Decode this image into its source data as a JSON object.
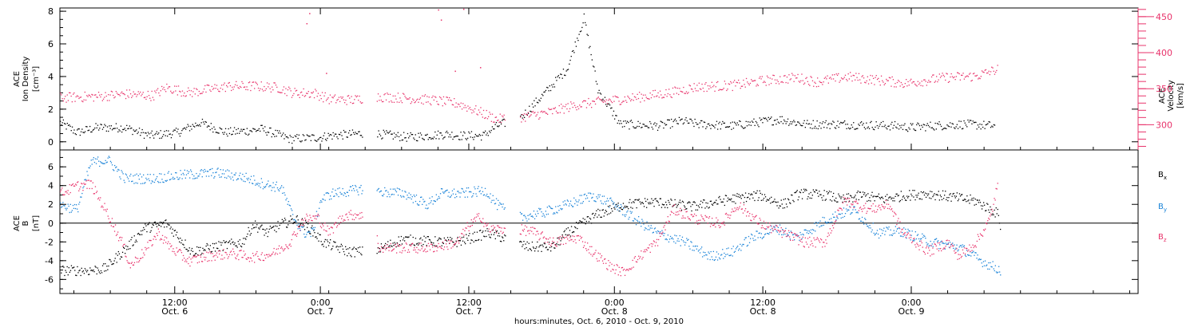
{
  "colors": {
    "black": "#000000",
    "pink": "#e8336b",
    "blue": "#1b84d8",
    "frame": "#000000"
  },
  "chart_data": [
    {
      "type": "scatter",
      "panel": "top",
      "left_axis": {
        "label_lines": [
          "ACE",
          "Ion Density"
        ],
        "unit": "[cm⁻³]",
        "ticks": [
          "8",
          "6",
          "4",
          "2",
          "0"
        ],
        "ylim": [
          -0.5,
          8.2
        ]
      },
      "right_axis": {
        "label_lines": [
          "ACE",
          "Velocity"
        ],
        "unit": "[km/s]",
        "ticks": [
          "450",
          "400",
          "350",
          "300"
        ],
        "ylim": [
          265,
          462
        ]
      },
      "series": [
        {
          "color": "black",
          "axis": "left",
          "points": [
            [
              0,
              1.2
            ],
            [
              0.6,
              0.6
            ],
            [
              1.3,
              0.9
            ],
            [
              2.3,
              0.9
            ],
            [
              3.2,
              0.4
            ],
            [
              4.2,
              0.6
            ],
            [
              5.0,
              1.2
            ],
            [
              5.9,
              0.6
            ],
            [
              6.7,
              0.7
            ],
            [
              7.2,
              0.8
            ],
            [
              8.2,
              0.2
            ],
            [
              9.3,
              0.3
            ],
            [
              9.6,
              0.4
            ],
            [
              10.5,
              0.5
            ],
            [
              11.0,
              0.6
            ],
            [
              11.4,
              0.5
            ],
            [
              12.4,
              0.3
            ],
            [
              13.8,
              0.5
            ],
            [
              14.3,
              0.4
            ],
            [
              15.1,
              0.4
            ],
            [
              15.6,
              1.0
            ],
            [
              16.5,
              1.6
            ],
            [
              17.3,
              3.0
            ],
            [
              18.1,
              4.5
            ],
            [
              18.7,
              7.6
            ],
            [
              19.2,
              3.2
            ],
            [
              20.0,
              1.1
            ],
            [
              21.4,
              1.0
            ],
            [
              22.2,
              1.3
            ],
            [
              22.8,
              1.1
            ],
            [
              24.0,
              1.0
            ],
            [
              25.7,
              1.4
            ],
            [
              26.6,
              1.1
            ],
            [
              27.9,
              1.1
            ],
            [
              29.8,
              1.0
            ],
            [
              30.4,
              0.9
            ],
            [
              31.1,
              1.0
            ],
            [
              32.3,
              1.1
            ],
            [
              33.4,
              1.0
            ]
          ]
        },
        {
          "color": "pink",
          "axis": "right",
          "points": [
            [
              0,
              338
            ],
            [
              1.4,
              340
            ],
            [
              2.3,
              343
            ],
            [
              3.3,
              341
            ],
            [
              3.8,
              352
            ],
            [
              4.6,
              345
            ],
            [
              5.2,
              349
            ],
            [
              6.0,
              354
            ],
            [
              7.0,
              354
            ],
            [
              7.8,
              352
            ],
            [
              8.3,
              345
            ],
            [
              9.1,
              344
            ],
            [
              9.6,
              336
            ],
            [
              10.5,
              335
            ],
            [
              11.1,
              340
            ],
            [
              12.2,
              338
            ],
            [
              13.2,
              335
            ],
            [
              14.2,
              330
            ],
            [
              14.8,
              321
            ],
            [
              15.6,
              308
            ],
            [
              16.6,
              312
            ],
            [
              17.5,
              318
            ],
            [
              18.4,
              328
            ],
            [
              19.6,
              334
            ],
            [
              20.5,
              338
            ],
            [
              21.8,
              345
            ],
            [
              22.7,
              353
            ],
            [
              24.0,
              355
            ],
            [
              25.2,
              362
            ],
            [
              26.3,
              366
            ],
            [
              27.0,
              360
            ],
            [
              28.1,
              367
            ],
            [
              29.1,
              363
            ],
            [
              30.2,
              358
            ],
            [
              31.6,
              366
            ],
            [
              32.7,
              368
            ],
            [
              33.5,
              378
            ]
          ]
        },
        {
          "color": "pink",
          "axis": "right",
          "style": "sparse",
          "points": [
            [
              8.9,
              455
            ],
            [
              8.8,
              441
            ],
            [
              13.5,
              460
            ],
            [
              14.4,
              461
            ],
            [
              13.6,
              446
            ],
            [
              15.0,
              380
            ],
            [
              9.5,
              372
            ],
            [
              14.1,
              375
            ]
          ]
        }
      ]
    },
    {
      "type": "scatter",
      "panel": "bottom",
      "left_axis": {
        "label_lines": [
          "ACE",
          "B"
        ],
        "unit": "[nT]",
        "ticks": [
          "6",
          "4",
          "2",
          "0",
          "-2",
          "-4",
          "-6"
        ],
        "ylim": [
          -7.5,
          7.8
        ]
      },
      "legend": [
        {
          "label": "B",
          "subscript": "x",
          "color": "black"
        },
        {
          "label": "B",
          "subscript": "y",
          "color": "blue"
        },
        {
          "label": "B",
          "subscript": "z",
          "color": "pink"
        }
      ],
      "series": [
        {
          "name": "Bx",
          "color": "black",
          "points": [
            [
              0,
              -5.0
            ],
            [
              1.0,
              -5.0
            ],
            [
              1.6,
              -4.8
            ],
            [
              2.4,
              -2.5
            ],
            [
              3.0,
              -0.5
            ],
            [
              3.8,
              0.0
            ],
            [
              4.7,
              -3.0
            ],
            [
              5.5,
              -2.5
            ],
            [
              6.5,
              -2.0
            ],
            [
              6.9,
              -0.1
            ],
            [
              7.4,
              -1.0
            ],
            [
              7.8,
              -0.2
            ],
            [
              8.4,
              0.5
            ],
            [
              8.9,
              -0.5
            ],
            [
              9.4,
              -2.0
            ],
            [
              10.3,
              -3.0
            ],
            [
              11.0,
              -3.0
            ],
            [
              11.4,
              -2.7
            ],
            [
              12.2,
              -1.7
            ],
            [
              13.2,
              -1.9
            ],
            [
              14.1,
              -2.0
            ],
            [
              14.7,
              -1.5
            ],
            [
              15.3,
              -1.0
            ],
            [
              15.8,
              -1.5
            ],
            [
              16.7,
              -2.5
            ],
            [
              17.6,
              -2.5
            ],
            [
              18.1,
              -1.0
            ],
            [
              19.2,
              1.0
            ],
            [
              20.1,
              2.0
            ],
            [
              21.2,
              2.3
            ],
            [
              22.6,
              1.8
            ],
            [
              23.9,
              2.6
            ],
            [
              25.0,
              3.0
            ],
            [
              25.8,
              2.0
            ],
            [
              26.4,
              3.2
            ],
            [
              27.4,
              3.0
            ],
            [
              27.9,
              2.5
            ],
            [
              28.6,
              3.0
            ],
            [
              29.4,
              2.6
            ],
            [
              30.2,
              3.0
            ],
            [
              31.0,
              3.2
            ],
            [
              31.9,
              2.8
            ],
            [
              32.7,
              2.4
            ],
            [
              33.5,
              1.0
            ],
            [
              33.6,
              -0.8
            ]
          ]
        },
        {
          "name": "By",
          "color": "blue",
          "points": [
            [
              0,
              2.0
            ],
            [
              0.6,
              1.5
            ],
            [
              1.1,
              6.5
            ],
            [
              1.7,
              6.8
            ],
            [
              2.3,
              4.8
            ],
            [
              3.3,
              4.8
            ],
            [
              4.5,
              5.2
            ],
            [
              5.6,
              5.4
            ],
            [
              6.6,
              4.9
            ],
            [
              7.3,
              4.2
            ],
            [
              7.9,
              3.8
            ],
            [
              8.3,
              0.8
            ],
            [
              8.7,
              -1.0
            ],
            [
              9.0,
              -1.0
            ],
            [
              9.3,
              2.5
            ],
            [
              9.7,
              3.2
            ],
            [
              10.2,
              3.4
            ],
            [
              11.0,
              3.8
            ],
            [
              11.4,
              3.4
            ],
            [
              12.3,
              3.2
            ],
            [
              13.1,
              2.0
            ],
            [
              13.6,
              3.2
            ],
            [
              14.3,
              3.2
            ],
            [
              15.2,
              3.5
            ],
            [
              15.6,
              2.0
            ],
            [
              16.3,
              0.6
            ],
            [
              17.3,
              1.2
            ],
            [
              18.1,
              2.0
            ],
            [
              19.0,
              3.0
            ],
            [
              19.8,
              2.0
            ],
            [
              20.5,
              0.5
            ],
            [
              21.3,
              -1.0
            ],
            [
              22.3,
              -2.0
            ],
            [
              23.2,
              -3.5
            ],
            [
              24.0,
              -3.0
            ],
            [
              24.7,
              -1.5
            ],
            [
              25.6,
              -0.5
            ],
            [
              26.3,
              -1.5
            ],
            [
              27.4,
              0.5
            ],
            [
              28.3,
              1.5
            ],
            [
              29.2,
              -1.0
            ],
            [
              30.0,
              -0.8
            ],
            [
              31.1,
              -2.0
            ],
            [
              32.1,
              -2.5
            ],
            [
              32.9,
              -4.0
            ],
            [
              33.6,
              -5.0
            ]
          ]
        },
        {
          "name": "Bz",
          "color": "pink",
          "points": [
            [
              0,
              3.2
            ],
            [
              0.6,
              4.0
            ],
            [
              1.1,
              4.2
            ],
            [
              1.7,
              1.0
            ],
            [
              2.2,
              -2.0
            ],
            [
              2.5,
              -4.5
            ],
            [
              3.0,
              -3.0
            ],
            [
              3.5,
              -1.0
            ],
            [
              4.0,
              -2.7
            ],
            [
              4.6,
              -4.0
            ],
            [
              5.4,
              -3.4
            ],
            [
              6.1,
              -3.2
            ],
            [
              6.9,
              -3.6
            ],
            [
              7.6,
              -3.2
            ],
            [
              8.2,
              -2.0
            ],
            [
              8.7,
              0.5
            ],
            [
              9.2,
              0.6
            ],
            [
              9.6,
              -1.0
            ],
            [
              10.1,
              0.8
            ],
            [
              10.7,
              1.0
            ],
            [
              11.2,
              -0.5
            ],
            [
              11.4,
              -2.6
            ],
            [
              12.4,
              -2.6
            ],
            [
              13.2,
              -2.6
            ],
            [
              14.2,
              -2.0
            ],
            [
              14.5,
              -0.5
            ],
            [
              15.0,
              0.8
            ],
            [
              15.3,
              -0.6
            ],
            [
              16.3,
              -0.6
            ],
            [
              16.8,
              -0.8
            ],
            [
              17.6,
              -2.0
            ],
            [
              18.5,
              -1.5
            ],
            [
              19.0,
              -3.0
            ],
            [
              19.6,
              -4.5
            ],
            [
              20.1,
              -5.2
            ],
            [
              20.8,
              -3.2
            ],
            [
              21.3,
              -2.0
            ],
            [
              21.9,
              1.5
            ],
            [
              22.7,
              0.5
            ],
            [
              23.6,
              0.0
            ],
            [
              24.2,
              2.0
            ],
            [
              25.0,
              0.0
            ],
            [
              25.8,
              -1.0
            ],
            [
              26.6,
              -2.0
            ],
            [
              27.3,
              -2.0
            ],
            [
              28.0,
              2.5
            ],
            [
              28.9,
              1.5
            ],
            [
              29.6,
              2.0
            ],
            [
              30.1,
              -1.0
            ],
            [
              31.0,
              -3.0
            ],
            [
              31.7,
              -2.0
            ],
            [
              32.1,
              -3.5
            ],
            [
              32.7,
              -2.0
            ],
            [
              33.2,
              0.5
            ],
            [
              33.5,
              4.5
            ]
          ]
        }
      ]
    }
  ],
  "x_axis": {
    "xlim": [
      0,
      38.5
    ],
    "gaps": [
      [
        10.8,
        11.3
      ],
      [
        15.9,
        16.4
      ]
    ],
    "ticks": [
      {
        "x": 4.1,
        "time": "12:00",
        "date": "Oct. 6"
      },
      {
        "x": 9.3,
        "time": "0:00",
        "date": "Oct. 7"
      },
      {
        "x": 14.6,
        "time": "12:00",
        "date": "Oct. 7"
      },
      {
        "x": 19.8,
        "time": "0:00",
        "date": "Oct. 8"
      },
      {
        "x": 25.1,
        "time": "12:00",
        "date": "Oct. 8"
      },
      {
        "x": 30.4,
        "time": "0:00",
        "date": "Oct. 9"
      }
    ],
    "title": "hours:minutes, Oct.  6, 2010 - Oct.  9, 2010"
  }
}
